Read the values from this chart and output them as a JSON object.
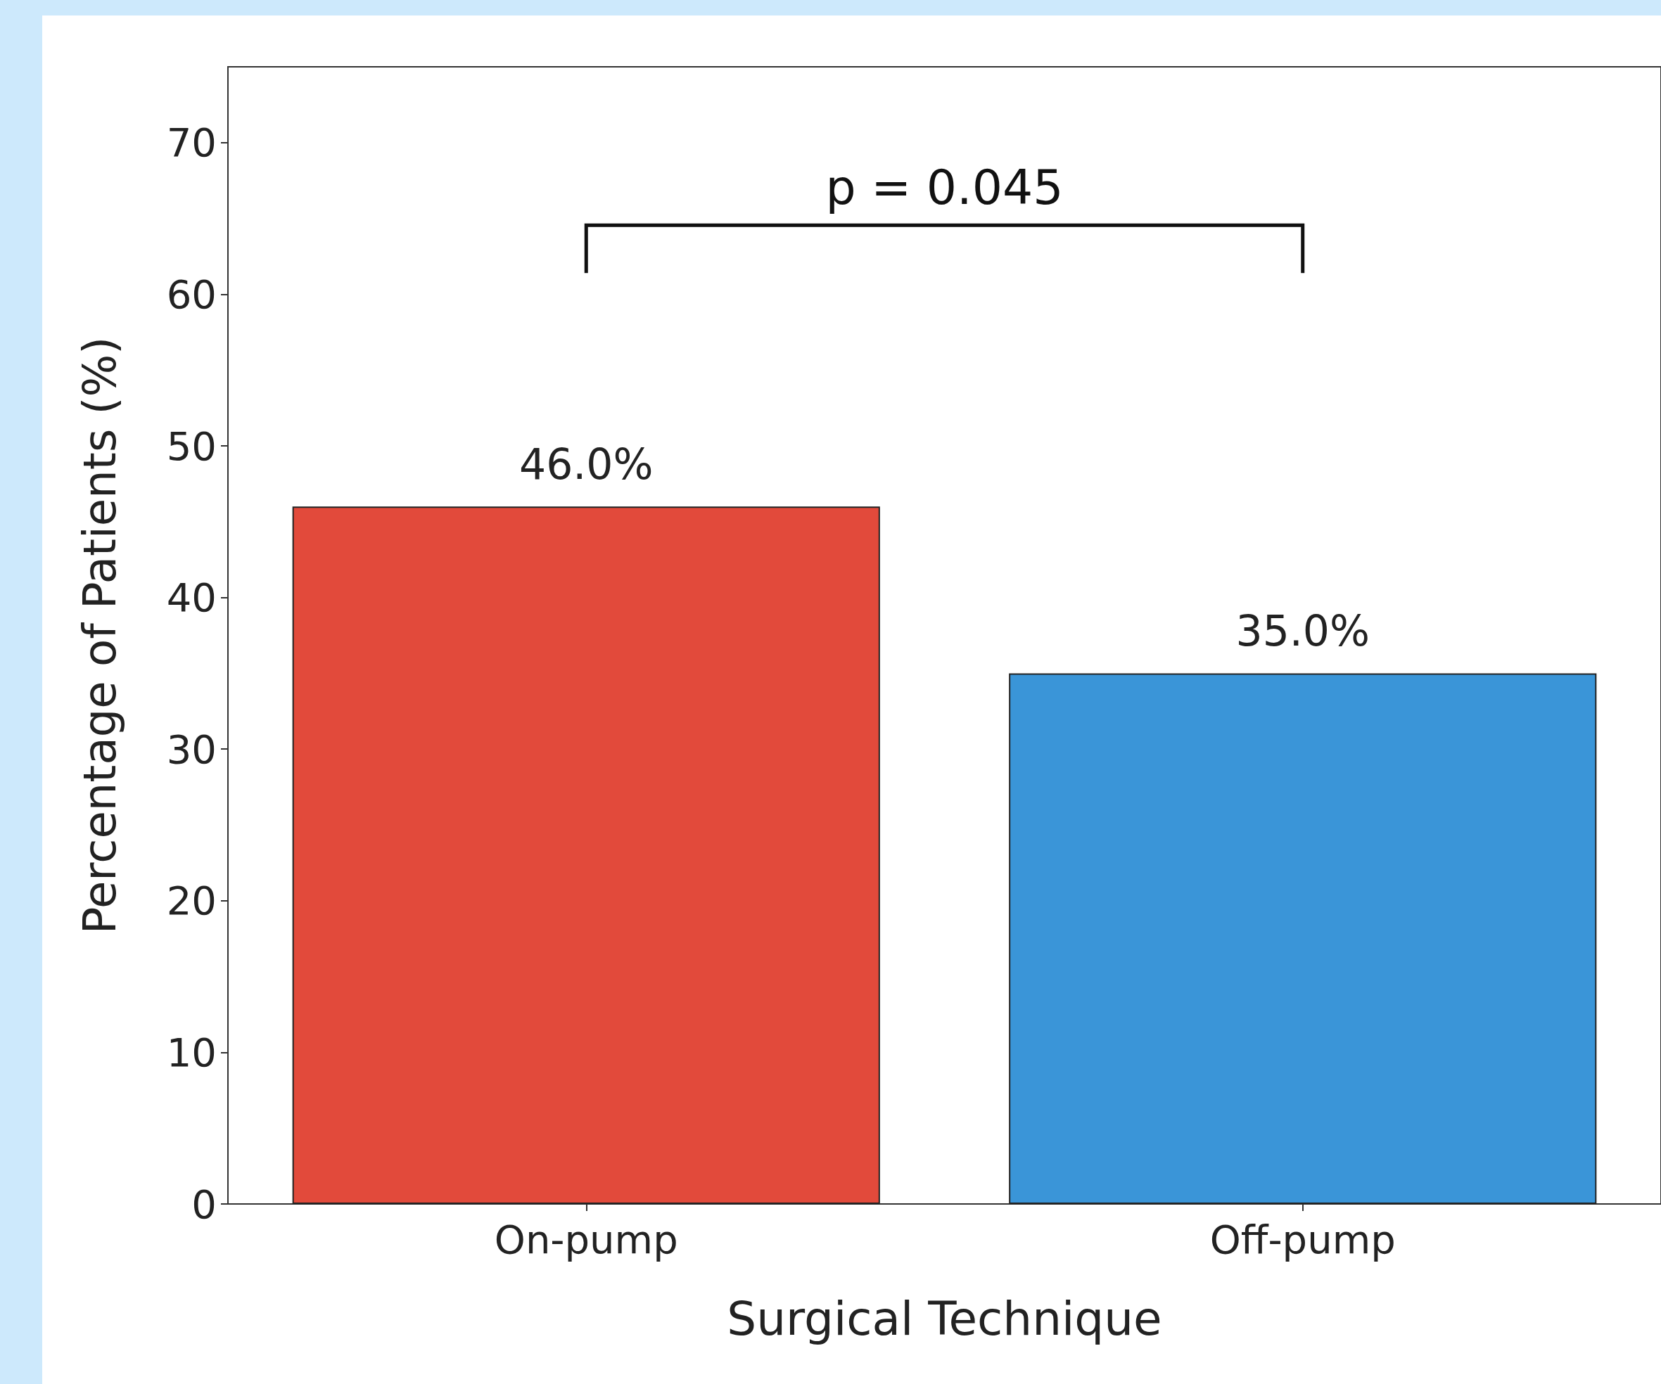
{
  "chart_data": {
    "type": "bar",
    "xlabel": "Surgical Technique",
    "ylabel": "Percentage of Patients (%)",
    "categories": [
      "On-pump",
      "Off-pump"
    ],
    "values": [
      46.0,
      35.0
    ],
    "colors": [
      "#e24a3b",
      "#3a95d8"
    ],
    "value_labels": [
      "46.0%",
      "35.0%"
    ],
    "ylim": [
      0,
      75
    ],
    "yticks": [
      0,
      10,
      20,
      30,
      40,
      50,
      60,
      70
    ],
    "grid": false,
    "annotations": [
      "p = 0.045"
    ]
  }
}
